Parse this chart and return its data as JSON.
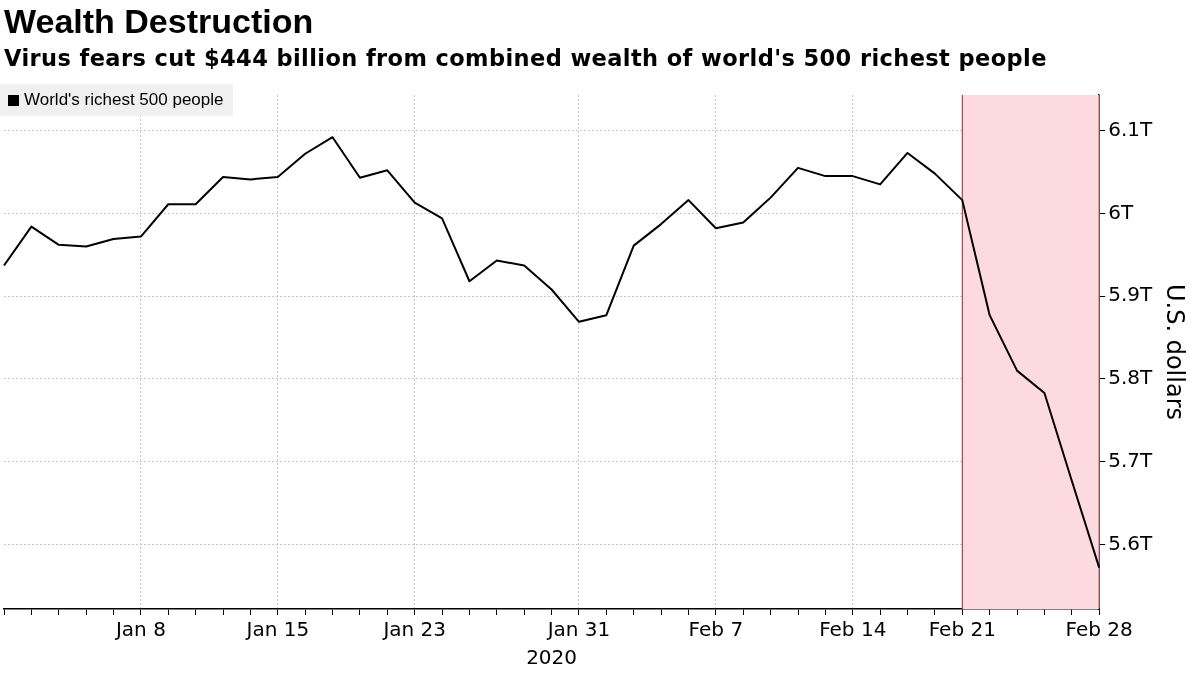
{
  "chart_data": {
    "type": "line",
    "title": "Wealth Destruction",
    "subtitle": "Virus fears cut $444 billion from combined wealth of world's 500 richest people",
    "xlabel": "2020",
    "ylabel": "U.S. dollars",
    "categories": [
      null,
      null,
      null,
      null,
      null,
      "Jan 8",
      null,
      null,
      null,
      null,
      "Jan 15",
      null,
      null,
      null,
      null,
      "Jan 23",
      null,
      null,
      null,
      null,
      null,
      "Jan 31",
      null,
      null,
      null,
      null,
      "Feb 7",
      null,
      null,
      null,
      null,
      "Feb 14",
      null,
      null,
      null,
      "Feb 21",
      null,
      null,
      null,
      null,
      "Feb 28"
    ],
    "series": [
      {
        "name": "World's richest 500 people",
        "color": "#000000",
        "values": [
          5.937,
          5.984,
          5.962,
          5.96,
          5.969,
          5.972,
          6.011,
          6.011,
          6.044,
          6.041,
          6.044,
          6.072,
          6.092,
          6.043,
          6.052,
          6.013,
          5.994,
          5.918,
          5.943,
          5.937,
          5.908,
          5.869,
          5.877,
          5.961,
          5.987,
          6.016,
          5.982,
          5.989,
          6.019,
          6.055,
          6.045,
          6.045,
          6.035,
          6.073,
          6.048,
          6.016,
          5.877,
          5.81,
          5.783,
          5.677,
          5.572
        ]
      }
    ],
    "ylim": [
      5.522,
      6.143
    ],
    "yticks": [
      {
        "value": 5.6,
        "label": "5.6T"
      },
      {
        "value": 5.7,
        "label": "5.7T"
      },
      {
        "value": 5.8,
        "label": "5.8T"
      },
      {
        "value": 5.9,
        "label": "5.9T"
      },
      {
        "value": 6,
        "label": "6T"
      },
      {
        "value": 6.1,
        "label": "6.1T"
      }
    ],
    "bands": [
      {
        "axis": "x",
        "from": "Feb 21",
        "to": "Feb 28",
        "color": "#fdd9e0"
      }
    ],
    "grid": true,
    "legend": "top left",
    "marker": "none",
    "line_style": "solid"
  }
}
